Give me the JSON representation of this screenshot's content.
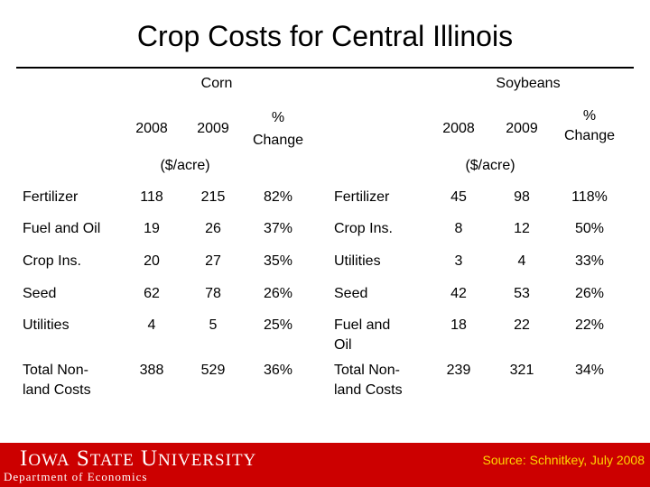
{
  "title": "Crop Costs for Central Illinois",
  "corn": {
    "label": "Corn",
    "headers": {
      "y1": "2008",
      "y2": "2009",
      "change_line1": "%",
      "change_line2": "Change"
    },
    "unit": "($/acre)",
    "rows": [
      {
        "item": [
          "Fertilizer"
        ],
        "y1": "118",
        "y2": "215",
        "change": "82%"
      },
      {
        "item": [
          "Fuel and Oil"
        ],
        "y1": "19",
        "y2": "26",
        "change": "37%"
      },
      {
        "item": [
          "Crop Ins."
        ],
        "y1": "20",
        "y2": "27",
        "change": "35%"
      },
      {
        "item": [
          "Seed"
        ],
        "y1": "62",
        "y2": "78",
        "change": "26%"
      },
      {
        "item": [
          "Utilities"
        ],
        "y1": "4",
        "y2": "5",
        "change": "25%"
      },
      {
        "item": [
          "Total Non-",
          "land Costs"
        ],
        "y1": "388",
        "y2": "529",
        "change": "36%"
      }
    ]
  },
  "soybeans": {
    "label": "Soybeans",
    "headers": {
      "y1": "2008",
      "y2": "2009",
      "change_line1": "%",
      "change_line2": "Change"
    },
    "unit": "($/acre)",
    "rows": [
      {
        "item": [
          "Fertilizer"
        ],
        "y1": "45",
        "y2": "98",
        "change": "118%"
      },
      {
        "item": [
          "Crop Ins."
        ],
        "y1": "8",
        "y2": "12",
        "change": "50%"
      },
      {
        "item": [
          "Utilities"
        ],
        "y1": "3",
        "y2": "4",
        "change": "33%"
      },
      {
        "item": [
          "Seed"
        ],
        "y1": "42",
        "y2": "53",
        "change": "26%"
      },
      {
        "item": [
          "Fuel and",
          "Oil"
        ],
        "y1": "18",
        "y2": "22",
        "change": "22%"
      },
      {
        "item": [
          "Total Non-",
          "land Costs"
        ],
        "y1": "239",
        "y2": "321",
        "change": "34%"
      }
    ]
  },
  "footer": {
    "university": "Iowa State University",
    "department": "Department of Economics",
    "source": "Source: Schnitkey, July 2008"
  },
  "colors": {
    "footer_bg": "#cc0000",
    "source_text": "#ffd700"
  }
}
